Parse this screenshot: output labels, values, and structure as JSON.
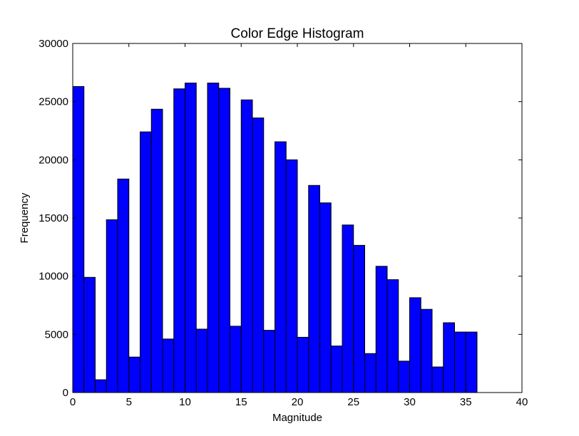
{
  "chart_data": {
    "type": "bar",
    "title": "Color Edge Histogram",
    "xlabel": "Magnitude",
    "ylabel": "Frequency",
    "xlim": [
      0,
      40
    ],
    "ylim": [
      0,
      30000
    ],
    "x_ticks": [
      0,
      5,
      10,
      15,
      20,
      25,
      30,
      35,
      40
    ],
    "y_ticks": [
      0,
      5000,
      10000,
      15000,
      20000,
      25000,
      30000
    ],
    "bin_width": 1,
    "bin_edges_start": 0,
    "values": [
      26300,
      9900,
      1100,
      14850,
      18350,
      3050,
      22400,
      24350,
      4600,
      26100,
      26600,
      5450,
      26600,
      26150,
      5700,
      25150,
      23600,
      5350,
      21550,
      20000,
      4750,
      17800,
      16300,
      4000,
      14400,
      12650,
      3350,
      10850,
      9700,
      2700,
      8150,
      7150,
      2200,
      6000,
      5200,
      5200
    ],
    "bar_color": "#0000ff",
    "edge_color": "#000000",
    "grid": false
  }
}
